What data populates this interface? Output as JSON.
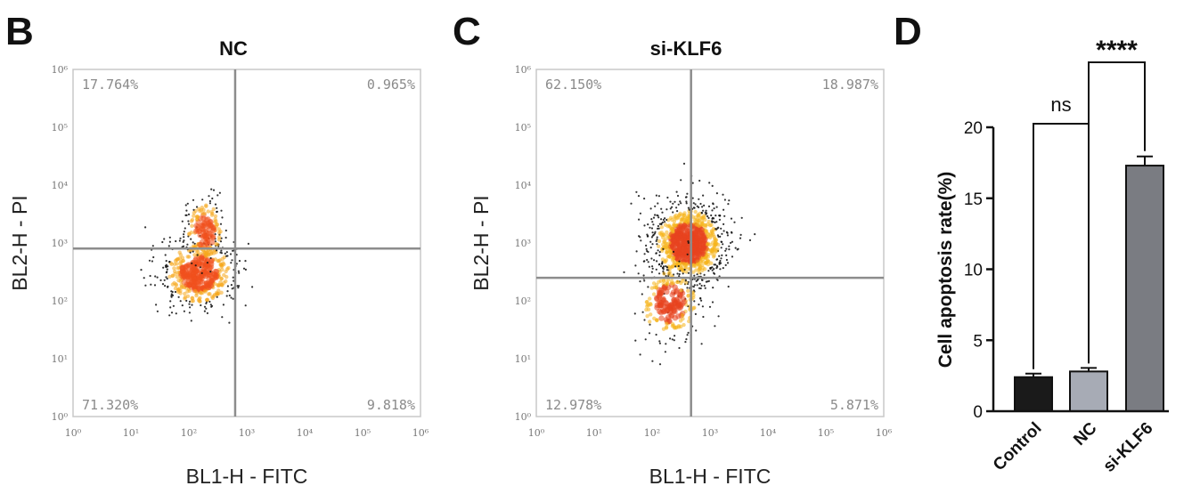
{
  "chart_data": [
    {
      "type": "scatter",
      "panel": "B",
      "title": "NC",
      "xlabel": "BL1-H - FITC",
      "ylabel": "BL2-H - PI",
      "x_scale": "log",
      "y_scale": "log",
      "xlim": [
        1,
        1000000
      ],
      "ylim": [
        1,
        1000000
      ],
      "x_ticks": [
        "10⁰",
        "10¹",
        "10²",
        "10³",
        "10⁴",
        "10⁵",
        "10⁶"
      ],
      "y_ticks": [
        "10⁰",
        "10¹",
        "10²",
        "10³",
        "10⁴",
        "10⁵",
        "10⁶"
      ],
      "gate": {
        "x": 630,
        "y": 800
      },
      "quadrants": {
        "upper_left": "17.764%",
        "upper_right": "0.965%",
        "lower_left": "71.320%",
        "lower_right": "9.818%"
      },
      "populations": [
        {
          "x": 150,
          "y": 300,
          "sx": 0.34,
          "sy": 0.32,
          "n": 520
        },
        {
          "x": 190,
          "y": 1600,
          "sx": 0.18,
          "sy": 0.3,
          "n": 170
        }
      ],
      "colors": {
        "dense": "#f0501e",
        "mid": "#f5a81c",
        "sparse": "#111111",
        "gate": "#8c8c8c"
      }
    },
    {
      "type": "scatter",
      "panel": "C",
      "title": "si-KLF6",
      "xlabel": "BL1-H - FITC",
      "ylabel": "BL2-H - PI",
      "x_scale": "log",
      "y_scale": "log",
      "xlim": [
        1,
        1000000
      ],
      "ylim": [
        1,
        1000000
      ],
      "x_ticks": [
        "10⁰",
        "10¹",
        "10²",
        "10³",
        "10⁴",
        "10⁵",
        "10⁶"
      ],
      "y_ticks": [
        "10⁰",
        "10¹",
        "10²",
        "10³",
        "10⁴",
        "10⁵",
        "10⁶"
      ],
      "gate": {
        "x": 470,
        "y": 250
      },
      "quadrants": {
        "upper_left": "62.150%",
        "upper_right": "18.987%",
        "lower_left": "12.978%",
        "lower_right": "5.871%"
      },
      "populations": [
        {
          "x": 420,
          "y": 1000,
          "sx": 0.34,
          "sy": 0.36,
          "n": 950
        },
        {
          "x": 200,
          "y": 90,
          "sx": 0.28,
          "sy": 0.35,
          "n": 260
        }
      ],
      "colors": {
        "dense": "#e8441f",
        "mid": "#f5b41c",
        "sparse": "#111111",
        "gate": "#8c8c8c"
      }
    },
    {
      "type": "bar",
      "panel": "D",
      "categories": [
        "Control",
        "NC",
        "si-KLF6"
      ],
      "values": [
        2.4,
        2.8,
        17.3
      ],
      "errors": [
        0.25,
        0.25,
        0.65
      ],
      "ylabel": "Cell apoptosis rate(%)",
      "ylim": [
        0,
        20
      ],
      "yticks": [
        0,
        5,
        10,
        15,
        20
      ],
      "bar_colors": [
        "#1a1a1a",
        "#a7abb5",
        "#7a7c82"
      ],
      "significance": [
        {
          "from": 0,
          "to": 1,
          "label": "ns"
        },
        {
          "from": 1,
          "to": 2,
          "label": "****"
        }
      ]
    }
  ]
}
